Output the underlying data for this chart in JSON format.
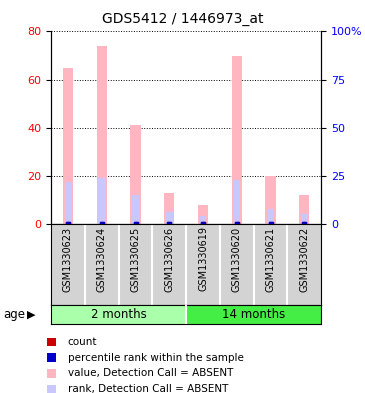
{
  "title": "GDS5412 / 1446973_at",
  "samples": [
    "GSM1330623",
    "GSM1330624",
    "GSM1330625",
    "GSM1330626",
    "GSM1330619",
    "GSM1330620",
    "GSM1330621",
    "GSM1330622"
  ],
  "absent_value": [
    65,
    74,
    41,
    13,
    8,
    70,
    20,
    12
  ],
  "absent_rank": [
    22,
    24,
    15,
    6,
    4,
    23,
    8,
    5
  ],
  "ylim_left": [
    0,
    80
  ],
  "ylim_right": [
    0,
    100
  ],
  "yticks_left": [
    0,
    20,
    40,
    60,
    80
  ],
  "yticks_right": [
    0,
    25,
    50,
    75,
    100
  ],
  "color_absent_value": "#FFB6C1",
  "color_absent_rank": "#C8C8FF",
  "color_count": "#CC0000",
  "color_rank_dot": "#0000CC",
  "bar_bg_color": "#D3D3D3",
  "group_bg_color_2m": "#AAFFAA",
  "group_bg_color_14m": "#44EE44",
  "plot_bg_color": "#FFFFFF",
  "legend_items": [
    {
      "label": "count",
      "color": "#CC0000"
    },
    {
      "label": "percentile rank within the sample",
      "color": "#0000CC"
    },
    {
      "label": "value, Detection Call = ABSENT",
      "color": "#FFB6C1"
    },
    {
      "label": "rank, Detection Call = ABSENT",
      "color": "#C8C8FF"
    }
  ],
  "fig_width": 3.65,
  "fig_height": 3.93,
  "dpi": 100
}
